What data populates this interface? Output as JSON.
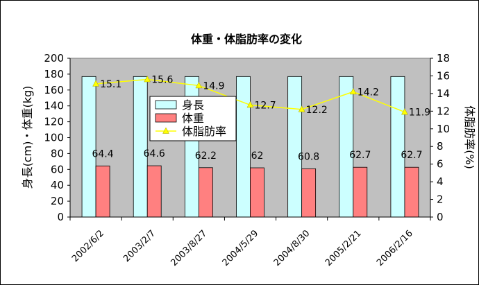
{
  "chart_data": {
    "type": "bar",
    "title": "体重・体脂肪率の変化",
    "categories": [
      "2002/6/2",
      "2003/2/7",
      "2003/8/27",
      "2004/5/29",
      "2004/8/30",
      "2005/2/21",
      "2006/2/16"
    ],
    "series": [
      {
        "name": "身長",
        "type": "bar",
        "axis": "left",
        "values": [
          177,
          177,
          177,
          177,
          177,
          177,
          177
        ],
        "color": "#ccffff"
      },
      {
        "name": "体重",
        "type": "bar",
        "axis": "left",
        "values": [
          64.4,
          64.6,
          62.2,
          62,
          60.8,
          62.7,
          62.7
        ],
        "data_labels": [
          "64.4",
          "64.6",
          "62.2",
          "62",
          "60.8",
          "62.7",
          "62.7"
        ],
        "color": "#ff8080"
      },
      {
        "name": "体脂肪率",
        "type": "line",
        "axis": "right",
        "values": [
          15.1,
          15.6,
          14.9,
          12.7,
          12.2,
          14.2,
          11.9
        ],
        "data_labels": [
          "15.1",
          "15.6",
          "14.9",
          "12.7",
          "12.2",
          "14.2",
          "11.9"
        ],
        "color": "#ffff00"
      }
    ],
    "ylabel": "身長(cm)・体重(kg)",
    "ylabel_right": "体脂肪率(%)",
    "ylim": [
      0,
      200
    ],
    "ylim_right": [
      0,
      18
    ],
    "yticks": [
      "0",
      "20",
      "40",
      "60",
      "80",
      "100",
      "120",
      "140",
      "160",
      "180",
      "200"
    ],
    "yticks_right": [
      "0",
      "2",
      "4",
      "6",
      "8",
      "10",
      "12",
      "14",
      "16",
      "18"
    ],
    "grid": false,
    "legend_position": "center-left",
    "plot_background": "#c0c0c0"
  }
}
